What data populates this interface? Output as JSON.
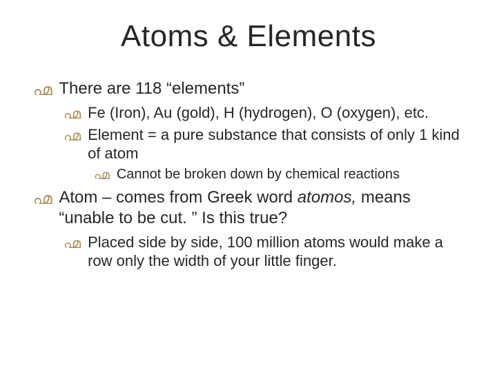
{
  "title": "Atoms & Elements",
  "bullets": {
    "b1": "There are 118 “elements”",
    "b1a": "Fe (Iron), Au (gold), H (hydrogen), O (oxygen), etc.",
    "b1b": "Element = a pure substance that consists of only 1 kind of atom",
    "b1b1": "Cannot be broken down by chemical reactions",
    "b2_pre": "Atom – comes from Greek word ",
    "b2_em": "atomos,",
    "b2_post": " means “unable to be cut. ”  Is this true?",
    "b2a": "Placed side by side, 100 million atoms would make a row only the width of your little finger."
  },
  "style": {
    "background": "#ffffff",
    "title_color": "#262626",
    "text_color": "#262626",
    "bullet_color": "#a88f58",
    "title_fontsize": 44,
    "l1_fontsize": 24,
    "l2_fontsize": 22,
    "l3_fontsize": 20,
    "bullet_glyph": "൶"
  }
}
